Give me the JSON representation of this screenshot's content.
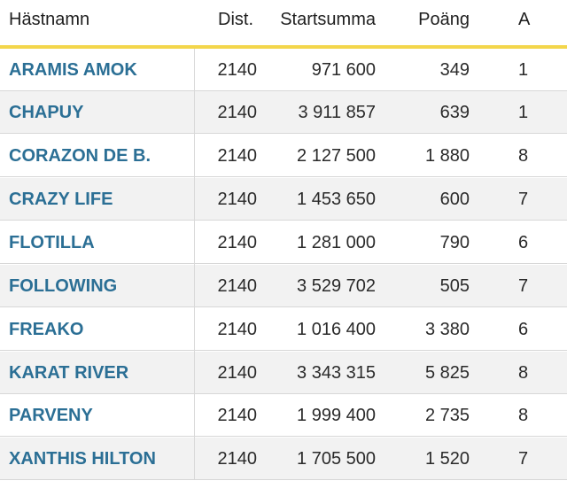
{
  "table": {
    "headers": {
      "horse_name": "Hästnamn",
      "distance": "Dist.",
      "start_sum": "Startsumma",
      "points": "Poäng",
      "extra": "A"
    },
    "rows": [
      {
        "horse": "ARAMIS AMOK",
        "distance": "2140",
        "start_sum": "971 600",
        "points": "349",
        "extra": "1"
      },
      {
        "horse": "CHAPUY",
        "distance": "2140",
        "start_sum": "3 911 857",
        "points": "639",
        "extra": "1"
      },
      {
        "horse": "CORAZON DE B.",
        "distance": "2140",
        "start_sum": "2 127 500",
        "points": "1 880",
        "extra": "8"
      },
      {
        "horse": "CRAZY LIFE",
        "distance": "2140",
        "start_sum": "1 453 650",
        "points": "600",
        "extra": "7"
      },
      {
        "horse": "FLOTILLA",
        "distance": "2140",
        "start_sum": "1 281 000",
        "points": "790",
        "extra": "6"
      },
      {
        "horse": "FOLLOWING",
        "distance": "2140",
        "start_sum": "3 529 702",
        "points": "505",
        "extra": "7"
      },
      {
        "horse": "FREAKO",
        "distance": "2140",
        "start_sum": "1 016 400",
        "points": "3 380",
        "extra": "6"
      },
      {
        "horse": "KARAT RIVER",
        "distance": "2140",
        "start_sum": "3 343 315",
        "points": "5 825",
        "extra": "8"
      },
      {
        "horse": "PARVENY",
        "distance": "2140",
        "start_sum": "1 999 400",
        "points": "2 735",
        "extra": "8"
      },
      {
        "horse": "XANTHIS HILTON",
        "distance": "2140",
        "start_sum": "1 705 500",
        "points": "1 520",
        "extra": "7"
      }
    ]
  }
}
